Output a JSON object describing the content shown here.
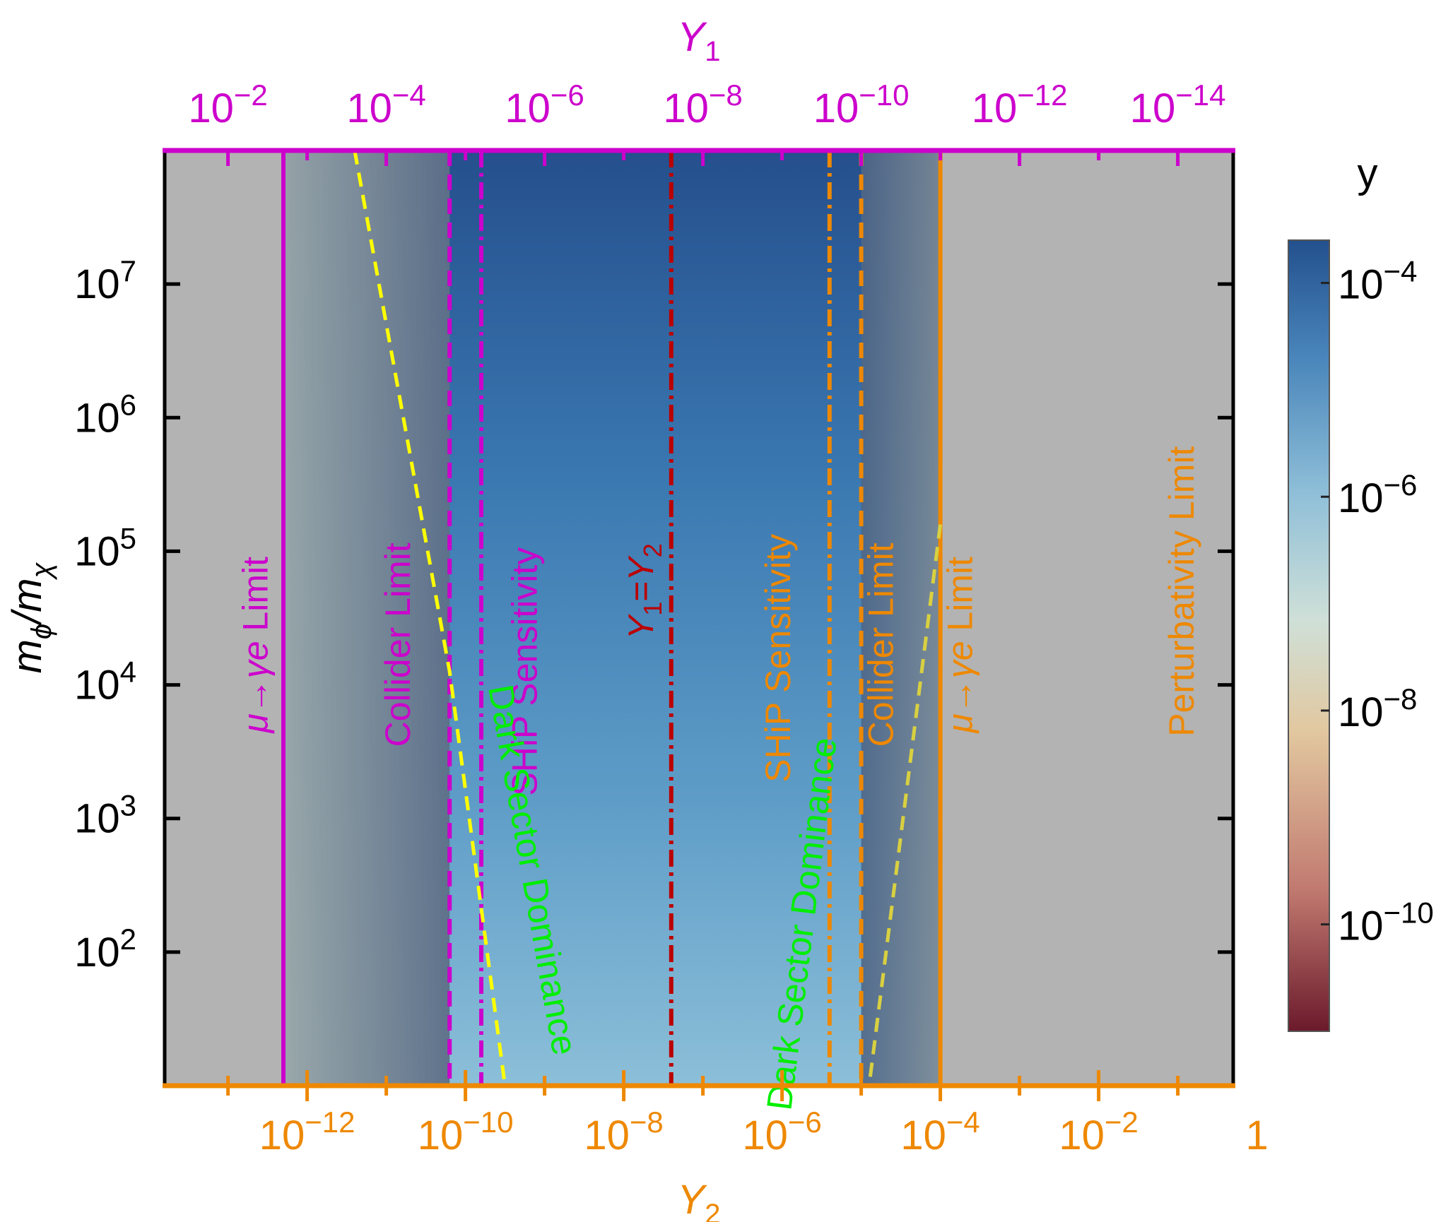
{
  "colors": {
    "magenta": "#cc00cc",
    "orange": "#ee8800",
    "green": "#00ee00",
    "dark_red": "#bb0000",
    "yellow": "#ffff00",
    "olive_dash": "#d8d040",
    "gray_excluded": "#b3b3b3",
    "shade": "#3a4d70",
    "black": "#000000"
  },
  "chart_data": {
    "type": "heatmap",
    "axes": {
      "bottom": {
        "label": "Y",
        "label_sub": "2",
        "scale": "log",
        "range_log10": [
          -13.8,
          -0.3
        ],
        "ticks": [
          {
            "log10": -12,
            "base": "10",
            "exp": "−12"
          },
          {
            "log10": -10,
            "base": "10",
            "exp": "−10"
          },
          {
            "log10": -8,
            "base": "10",
            "exp": "−8"
          },
          {
            "log10": -6,
            "base": "10",
            "exp": "−6"
          },
          {
            "log10": -4,
            "base": "10",
            "exp": "−4"
          },
          {
            "log10": -2,
            "base": "10",
            "exp": "−2"
          },
          {
            "log10": 0,
            "base": "1",
            "exp": ""
          }
        ]
      },
      "top": {
        "label": "Y",
        "label_sub": "1",
        "scale": "log",
        "range_log10": [
          -1.2,
          -14.7
        ],
        "ticks": [
          {
            "log10": -2,
            "base": "10",
            "exp": "−2"
          },
          {
            "log10": -4,
            "base": "10",
            "exp": "−4"
          },
          {
            "log10": -6,
            "base": "10",
            "exp": "−6"
          },
          {
            "log10": -8,
            "base": "10",
            "exp": "−8"
          },
          {
            "log10": -10,
            "base": "10",
            "exp": "−10"
          },
          {
            "log10": -12,
            "base": "10",
            "exp": "−12"
          },
          {
            "log10": -14,
            "base": "10",
            "exp": "−14"
          }
        ]
      },
      "left": {
        "label_main": "m",
        "label_main_sub": "ϕ",
        "label_slash": "/m",
        "label_den_sub": "χ",
        "scale": "log",
        "range_log10": [
          1.0,
          8.0
        ],
        "ticks": [
          {
            "log10": 2,
            "base": "10",
            "exp": "2"
          },
          {
            "log10": 3,
            "base": "10",
            "exp": "3"
          },
          {
            "log10": 4,
            "base": "10",
            "exp": "4"
          },
          {
            "log10": 5,
            "base": "10",
            "exp": "5"
          },
          {
            "log10": 6,
            "base": "10",
            "exp": "6"
          },
          {
            "log10": 7,
            "base": "10",
            "exp": "7"
          }
        ]
      }
    },
    "colorbar": {
      "label": "y",
      "range_log10": [
        -11.0,
        -3.6
      ],
      "ticks": [
        {
          "log10": -4,
          "base": "10",
          "exp": "−4"
        },
        {
          "log10": -6,
          "base": "10",
          "exp": "−6"
        },
        {
          "log10": -8,
          "base": "10",
          "exp": "−8"
        },
        {
          "log10": -10,
          "base": "10",
          "exp": "−10"
        }
      ],
      "gradient": [
        "#6b1a2b",
        "#c17a70",
        "#e2c8a0",
        "#cfe0d8",
        "#8fbfd8",
        "#4a86bb",
        "#23508e"
      ]
    },
    "excluded_regions": [
      {
        "name": "mu-gamma-e-limit-y1",
        "y2_log10": [
          -13.8,
          -12.3
        ]
      },
      {
        "name": "mu-gamma-e-limit-y2",
        "y2_log10": [
          -4.0,
          -0.3
        ]
      }
    ],
    "lines": [
      {
        "name": "mu-gamma-e-limit-magenta",
        "y2_log10": -12.3,
        "style": "solid",
        "color": "magenta"
      },
      {
        "name": "collider-limit-magenta",
        "y2_log10": -10.2,
        "style": "dashed",
        "color": "magenta"
      },
      {
        "name": "ship-sensitivity-magenta",
        "y2_log10": -9.8,
        "style": "dashdot",
        "color": "magenta"
      },
      {
        "name": "y1-equals-y2",
        "y2_log10": -7.4,
        "style": "dashdot",
        "color": "dark_red"
      },
      {
        "name": "ship-sensitivity-orange",
        "y2_log10": -5.4,
        "style": "dashdot",
        "color": "orange"
      },
      {
        "name": "collider-limit-orange",
        "y2_log10": -5.0,
        "style": "dashed",
        "color": "orange"
      },
      {
        "name": "mu-gamma-e-limit-orange",
        "y2_log10": -4.0,
        "style": "solid",
        "color": "orange"
      }
    ],
    "dominance_boundaries": [
      {
        "name": "dark-sector-dominance-left",
        "points_log10": [
          [
            -11.4,
            8.0
          ],
          [
            -10.2,
            4.1
          ],
          [
            -9.5,
            1.0
          ]
        ],
        "style": "dashed"
      },
      {
        "name": "dark-sector-dominance-right",
        "points_log10": [
          [
            -4.0,
            5.2
          ],
          [
            -4.9,
            1.0
          ]
        ],
        "style": "dashed"
      }
    ],
    "annotations": [
      {
        "id": "mu_left",
        "pre": "μ→γe",
        "text": " Limit",
        "color": "magenta",
        "y2_log10": -12.5,
        "log_y": 4.3
      },
      {
        "id": "collider_left",
        "pre": "",
        "text": "Collider Limit",
        "color": "magenta",
        "y2_log10": -10.7,
        "log_y": 4.3
      },
      {
        "id": "ship_left",
        "pre": "",
        "text": "SHiP Sensitivity",
        "color": "magenta",
        "y2_log10": -9.1,
        "log_y": 4.1
      },
      {
        "id": "dsd_left",
        "pre": "",
        "text": "Dark Sector Dominance",
        "color": "green",
        "y2_log10": -9.3,
        "log_y": 2.6,
        "rotate": 80
      },
      {
        "id": "ship_right",
        "pre": "",
        "text": "SHiP Sensitivity",
        "color": "orange",
        "y2_log10": -5.9,
        "log_y": 4.2
      },
      {
        "id": "collider_right",
        "pre": "",
        "text": "Collider Limit",
        "color": "orange",
        "y2_log10": -4.6,
        "log_y": 4.3
      },
      {
        "id": "dsd_right",
        "pre": "",
        "text": "Dark Sector Dominance",
        "color": "green",
        "y2_log10": -5.6,
        "log_y": 2.2,
        "rotate": -83
      },
      {
        "id": "mu_right",
        "pre": "μ→γe",
        "text": " Limit",
        "color": "orange",
        "y2_log10": -3.6,
        "log_y": 4.3
      },
      {
        "id": "perturb",
        "pre": "",
        "text": "Perturbativity Limit",
        "color": "orange",
        "y2_log10": -0.8,
        "log_y": 4.7
      }
    ],
    "equality_label": {
      "y": "Y",
      "sub1": "1",
      "eq": "=",
      "sub2": "2"
    }
  }
}
